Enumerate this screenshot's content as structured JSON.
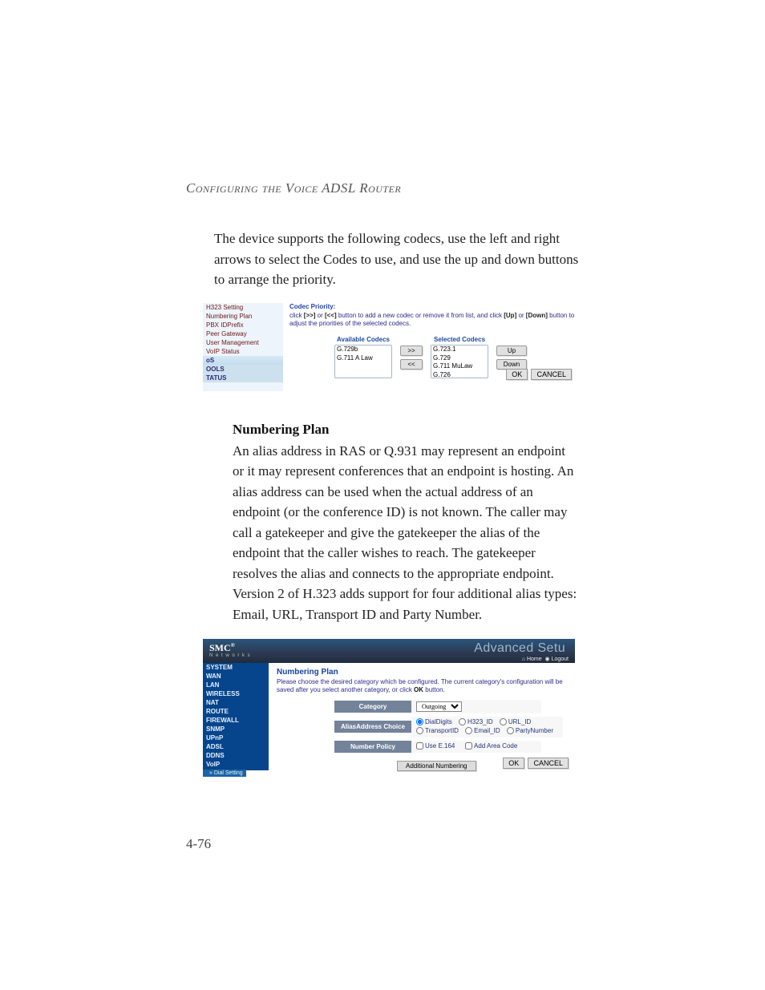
{
  "running_head": "Configuring the Voice ADSL Router",
  "page_number": "4-76",
  "paragraph1": "The device supports the following codecs, use the left and right arrows to select the Codes to use, and use the up and down buttons to arrange the priority.",
  "section_title": "Numbering Plan",
  "paragraph2": "An alias address in RAS or Q.931 may represent an endpoint or it may represent conferences that an endpoint is hosting. An alias address can be used when the actual address of an endpoint (or the conference ID) is not known. The caller may call a gatekeeper and give the gatekeeper the alias of the endpoint that the caller wishes to reach. The gatekeeper resolves the alias and connects to the appropriate endpoint. Version 2 of H.323 adds support for four additional alias types: Email, URL, Transport ID and Party Number.",
  "shot1": {
    "nav": [
      "H323 Setting",
      "Numbering Plan",
      "PBX IDPrefix",
      "Peer Gateway",
      "User Management",
      "VoIP Status",
      "oS",
      "OOLS",
      "TATUS"
    ],
    "cp_title": "Codec Priority:",
    "hint_pre": "click ",
    "hint_b1": "[>>]",
    "hint_mid1": " or ",
    "hint_b2": "[<<]",
    "hint_mid2": " button to add a new codec or remove it from list, and click ",
    "hint_b3": "[Up]",
    "hint_mid3": " or ",
    "hint_b4": "[Down]",
    "hint_end": " button to adjust the priorities of the selected codecs.",
    "avail_label": "Available Codecs",
    "sel_label": "Selected Codecs",
    "available": [
      "G.729b",
      "G.711 A Law"
    ],
    "selected": [
      "G.723.1",
      "G.729",
      "G.711 MuLaw",
      "G.726"
    ],
    "btn_right": ">>",
    "btn_left": "<<",
    "btn_up": "Up",
    "btn_down": "Down",
    "btn_ok": "OK",
    "btn_cancel": "CANCEL"
  },
  "shot2": {
    "logo": "SMC",
    "logo_sup": "®",
    "net": "N e t w o r k s",
    "banner_right": "Advanced Setu",
    "link_home": "Home",
    "link_logout": "Logout",
    "nav": [
      "SYSTEM",
      "WAN",
      "LAN",
      "WIRELESS",
      "NAT",
      "ROUTE",
      "FIREWALL",
      "SNMP",
      "UPnP",
      "ADSL",
      "DDNS",
      "VoIP"
    ],
    "nav_sub": "» Dial Setting",
    "np_title": "Numbering Plan",
    "np_hint_pre": "Please choose the desired category which be configured. The current category's configuration will be saved after you select another category, or click ",
    "np_hint_b": "OK",
    "np_hint_post": " button.",
    "row1_label": "Category",
    "row1_select": "Outgoing",
    "row2_label": "AliasAddress Choice",
    "radios": [
      "DialDigits",
      "H323_ID",
      "URL_ID",
      "TransportID",
      "Email_ID",
      "PartyNumber"
    ],
    "radio_checked": 0,
    "row3_label": "Number Policy",
    "chk1": "Use E.164",
    "chk2": "Add Area Code",
    "an_btn": "Additional Numbering",
    "btn_ok": "OK",
    "btn_cancel": "CANCEL"
  }
}
